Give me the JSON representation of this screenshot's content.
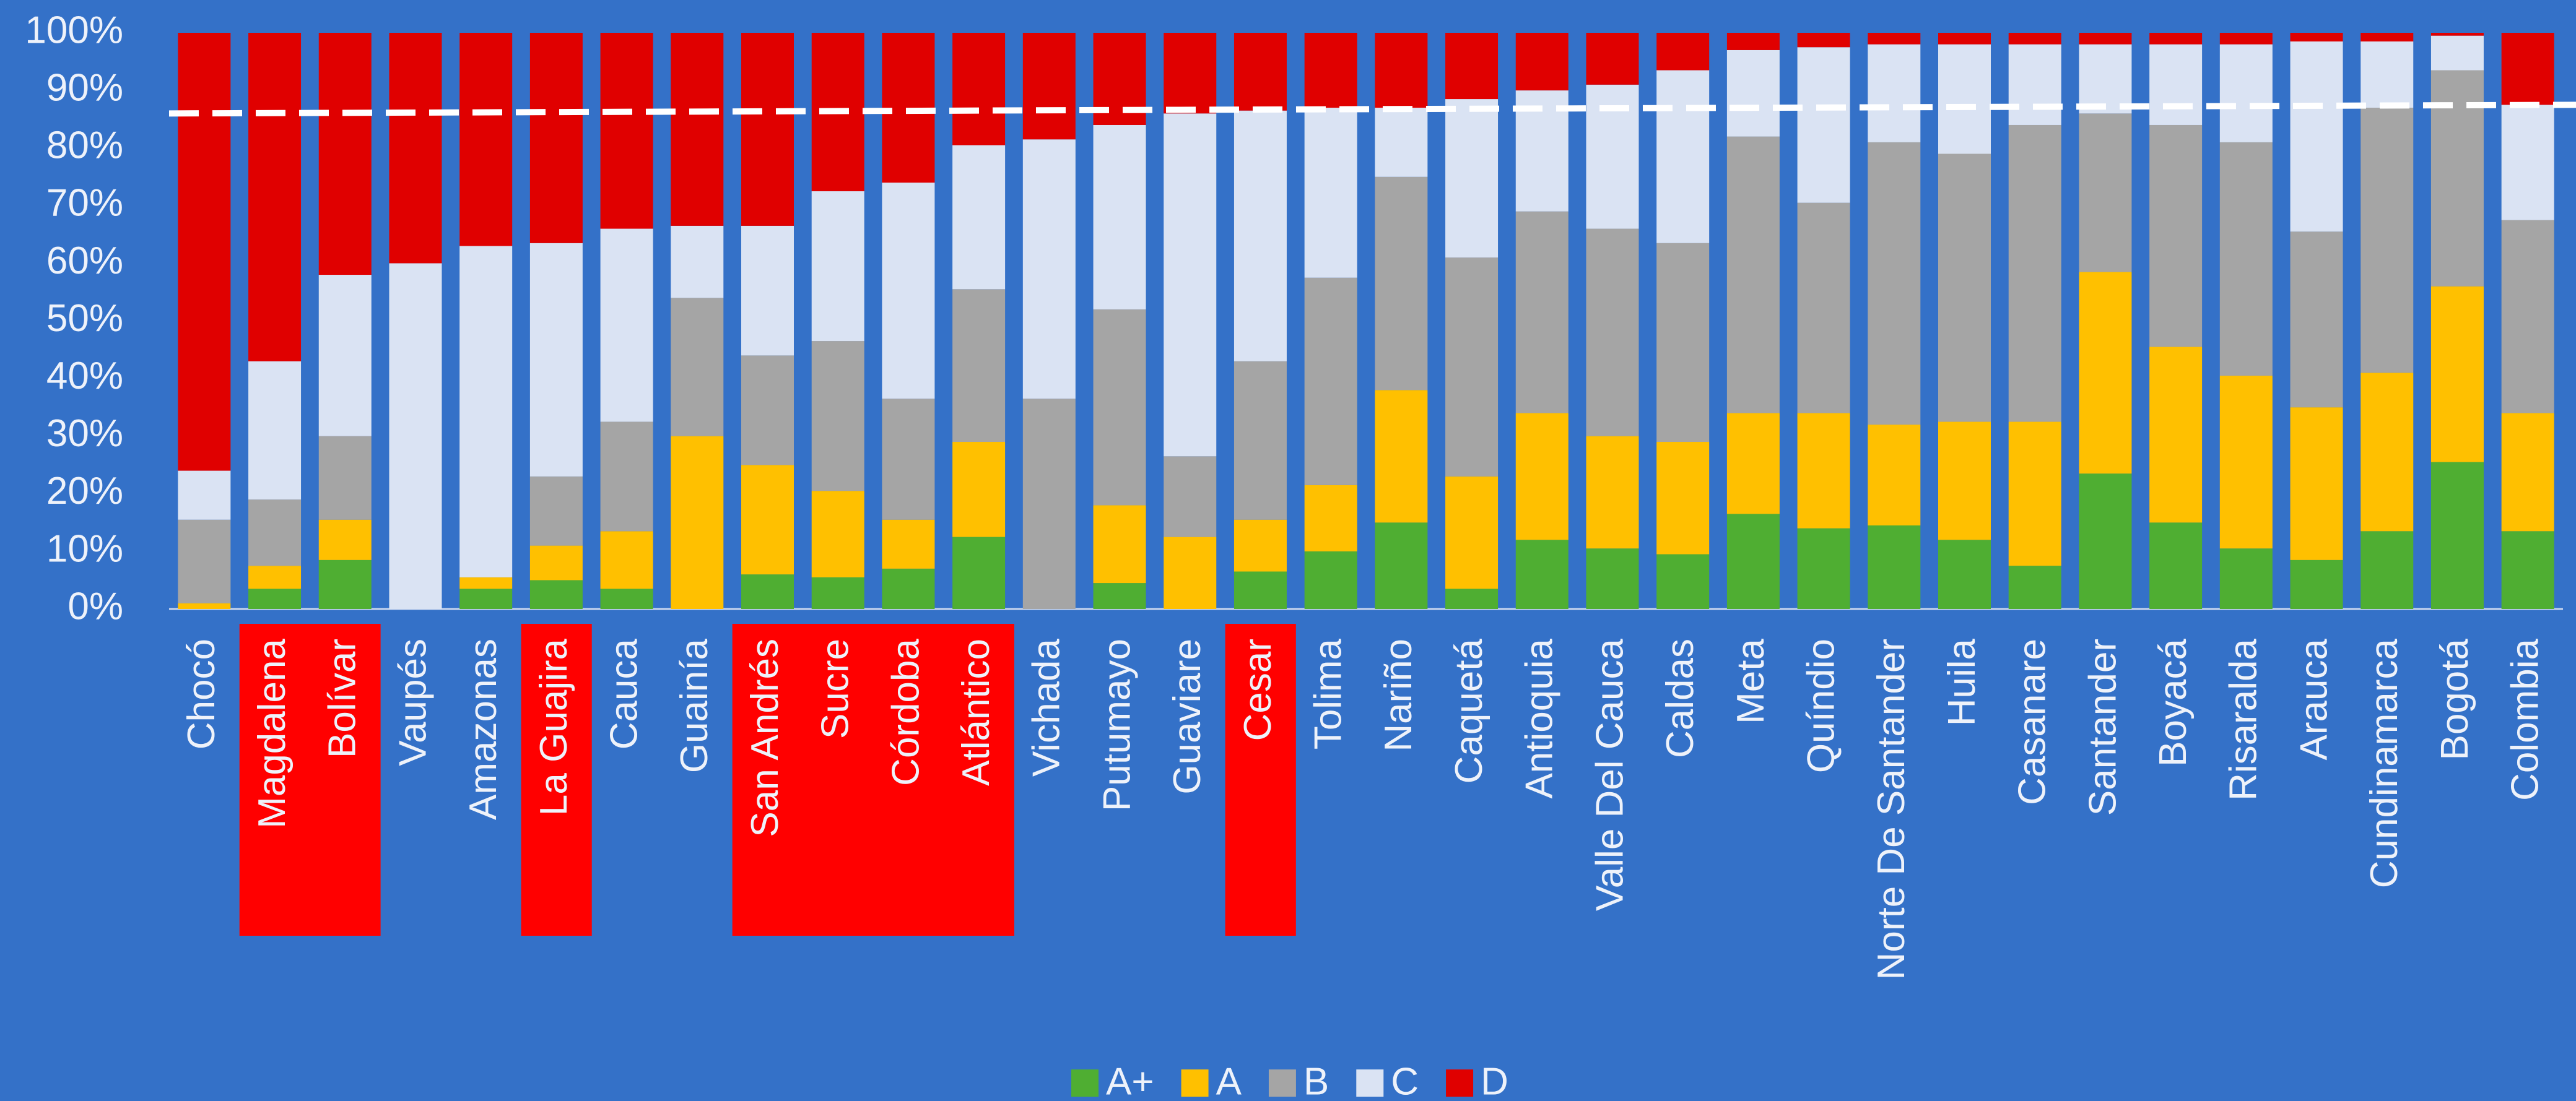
{
  "chart_data": {
    "type": "stacked_bar_100",
    "categories": [
      "Chocó",
      "Magdalena",
      "Bolívar",
      "Vaupés",
      "Amazonas",
      "La Guajira",
      "Cauca",
      "Guainía",
      "San Andrés",
      "Sucre",
      "Córdoba",
      "Atlántico",
      "Vichada",
      "Putumayo",
      "Guaviare",
      "Cesar",
      "Tolima",
      "Nariño",
      "Caquetá",
      "Antioquia",
      "Valle Del Cauca",
      "Caldas",
      "Meta",
      "Quíndio",
      "Norte De Santander",
      "Huila",
      "Casanare",
      "Santander",
      "Boyacá",
      "Risaralda",
      "Arauca",
      "Cundinamarca",
      "Bogotá",
      "Colombia"
    ],
    "highlighted": [
      false,
      true,
      true,
      false,
      false,
      true,
      false,
      false,
      true,
      true,
      true,
      true,
      false,
      false,
      false,
      true,
      false,
      false,
      false,
      false,
      false,
      false,
      false,
      false,
      false,
      false,
      false,
      false,
      false,
      false,
      false,
      false,
      false,
      false
    ],
    "series": [
      {
        "name": "A+",
        "color": "#4fae32",
        "values": [
          0,
          3.5,
          8.5,
          0,
          3.5,
          5,
          3.5,
          0,
          6,
          5.5,
          7,
          12.5,
          0,
          4.5,
          0,
          6.5,
          10,
          15,
          3.5,
          12,
          10.5,
          9.5,
          16.5,
          14,
          14.5,
          12,
          7.5,
          23.5,
          15,
          10.5,
          8.5,
          13.5,
          25.5,
          13.5
        ]
      },
      {
        "name": "A",
        "color": "#ffc000",
        "values": [
          1,
          4,
          7,
          0,
          2,
          6,
          10,
          30,
          19,
          15,
          8.5,
          16.5,
          0,
          13.5,
          12.5,
          9,
          11.5,
          23,
          19.5,
          22,
          19.5,
          19.5,
          17.5,
          20,
          17.5,
          20.5,
          25,
          35,
          30.5,
          30,
          26.5,
          27.5,
          30.5,
          20.5
        ]
      },
      {
        "name": "B",
        "color": "#a5a5a5",
        "values": [
          14.5,
          11.5,
          14.5,
          0,
          0,
          12,
          19,
          24,
          19,
          26,
          21,
          26.5,
          36.5,
          34,
          14,
          27.5,
          36,
          37,
          38,
          35,
          36,
          34.5,
          48,
          36.5,
          49,
          46.5,
          51.5,
          27.5,
          38.5,
          40.5,
          30.5,
          46,
          37.5,
          33.5
        ]
      },
      {
        "name": "C",
        "color": "#dae3f3",
        "values": [
          8.5,
          24,
          28,
          60,
          57.5,
          40.5,
          33.5,
          12.5,
          22.5,
          26,
          37.5,
          25,
          45,
          32,
          59.5,
          43.5,
          29.5,
          12,
          27.5,
          21,
          25,
          30,
          15,
          27,
          17,
          19,
          14,
          12,
          14,
          17,
          33,
          11.5,
          6,
          20
        ]
      },
      {
        "name": "D",
        "color": "#e00000",
        "values": [
          76,
          57,
          42,
          40,
          37,
          36.5,
          34,
          33.5,
          33.5,
          27.5,
          26,
          19.5,
          18.5,
          16,
          14,
          13.5,
          13,
          13,
          11.5,
          10,
          9,
          6.5,
          3,
          2.5,
          2,
          2,
          2,
          2,
          2,
          2,
          1.5,
          1.5,
          0.5,
          12.5
        ]
      }
    ],
    "reference_line": {
      "start": 86,
      "end": 87.5
    },
    "ylim": [
      0,
      100
    ],
    "yticks": [
      {
        "value": 0,
        "label": "0%"
      },
      {
        "value": 10,
        "label": "10%"
      },
      {
        "value": 20,
        "label": "20%"
      },
      {
        "value": 30,
        "label": "30%"
      },
      {
        "value": 40,
        "label": "40%"
      },
      {
        "value": 50,
        "label": "50%"
      },
      {
        "value": 60,
        "label": "60%"
      },
      {
        "value": 70,
        "label": "70%"
      },
      {
        "value": 80,
        "label": "80%"
      },
      {
        "value": 90,
        "label": "90%"
      },
      {
        "value": 100,
        "label": "100%"
      }
    ],
    "legend": "bottom"
  }
}
